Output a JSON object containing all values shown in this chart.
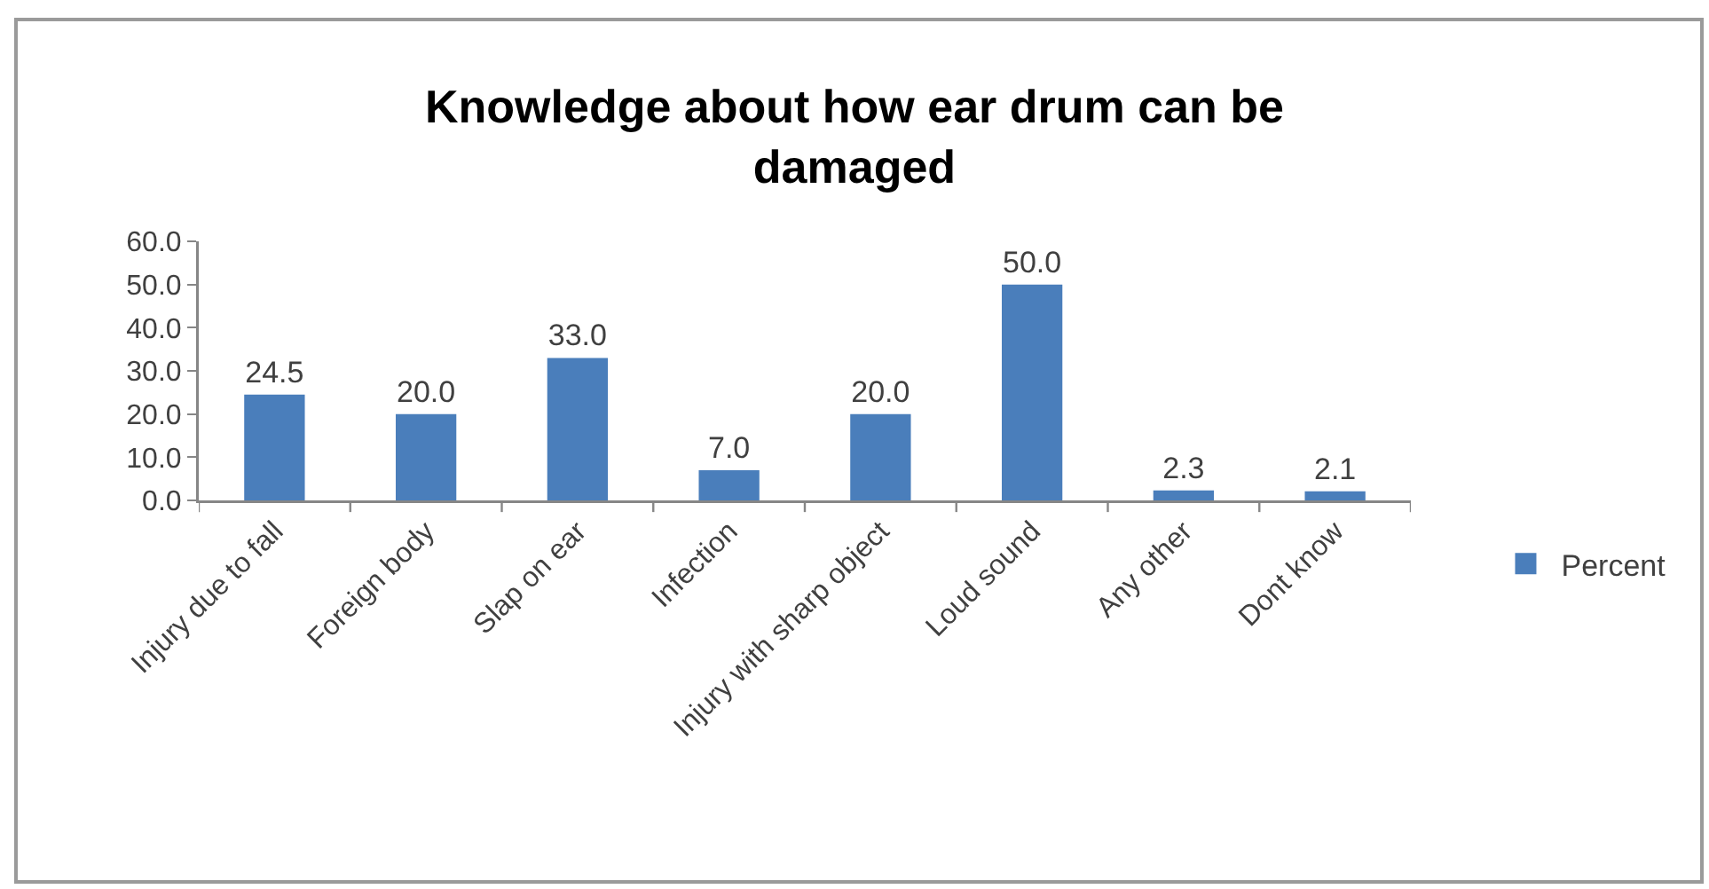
{
  "chart_data": {
    "type": "bar",
    "title": "Knowledge about how ear drum can be damaged",
    "categories": [
      "Injury due to fall",
      "Foreign body",
      "Slap on ear",
      "Infection",
      "Injury with sharp object",
      "Loud sound",
      "Any other",
      "Dont know"
    ],
    "series": [
      {
        "name": "Percent",
        "color": "#4a7ebb",
        "values": [
          24.5,
          20.0,
          33.0,
          7.0,
          20.0,
          50.0,
          2.3,
          2.1
        ],
        "value_labels": [
          "24.5",
          "20.0",
          "33.0",
          "7.0",
          "20.0",
          "50.0",
          "2.3",
          "2.1"
        ]
      }
    ],
    "ylim": [
      0,
      60
    ],
    "yticks": [
      {
        "value": 0,
        "label": "0.0"
      },
      {
        "value": 10,
        "label": "10.0"
      },
      {
        "value": 20,
        "label": "20.0"
      },
      {
        "value": 30,
        "label": "30.0"
      },
      {
        "value": 40,
        "label": "40.0"
      },
      {
        "value": 50,
        "label": "50.0"
      },
      {
        "value": 60,
        "label": "60.0"
      }
    ],
    "legend": "right"
  }
}
